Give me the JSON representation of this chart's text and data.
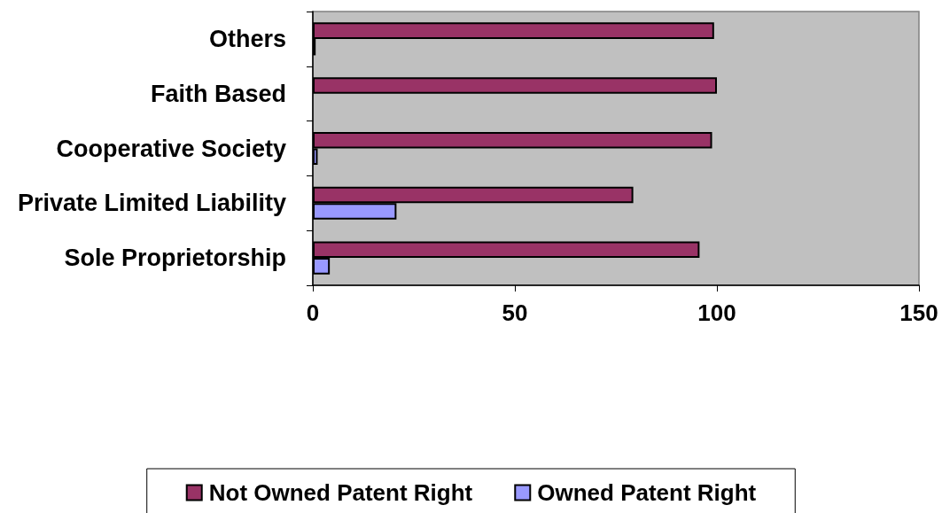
{
  "chart_data": {
    "type": "bar",
    "orientation": "horizontal",
    "categories": [
      "Others",
      "Faith Based",
      "Cooperative Society",
      "Private Limited Liability",
      "Sole Proprietorship"
    ],
    "series": [
      {
        "name": "Not Owned Patent Right",
        "color": "#993366",
        "values": [
          99.3,
          100,
          98.8,
          79.3,
          95.7
        ]
      },
      {
        "name": "Owned Patent Right",
        "color": "#9999ff",
        "values": [
          0.7,
          null,
          1.2,
          20.7,
          4.2
        ]
      }
    ],
    "xlim": [
      0,
      150
    ],
    "xticks": [
      0,
      50,
      100,
      150
    ],
    "grid": false,
    "legend": "bottom"
  }
}
